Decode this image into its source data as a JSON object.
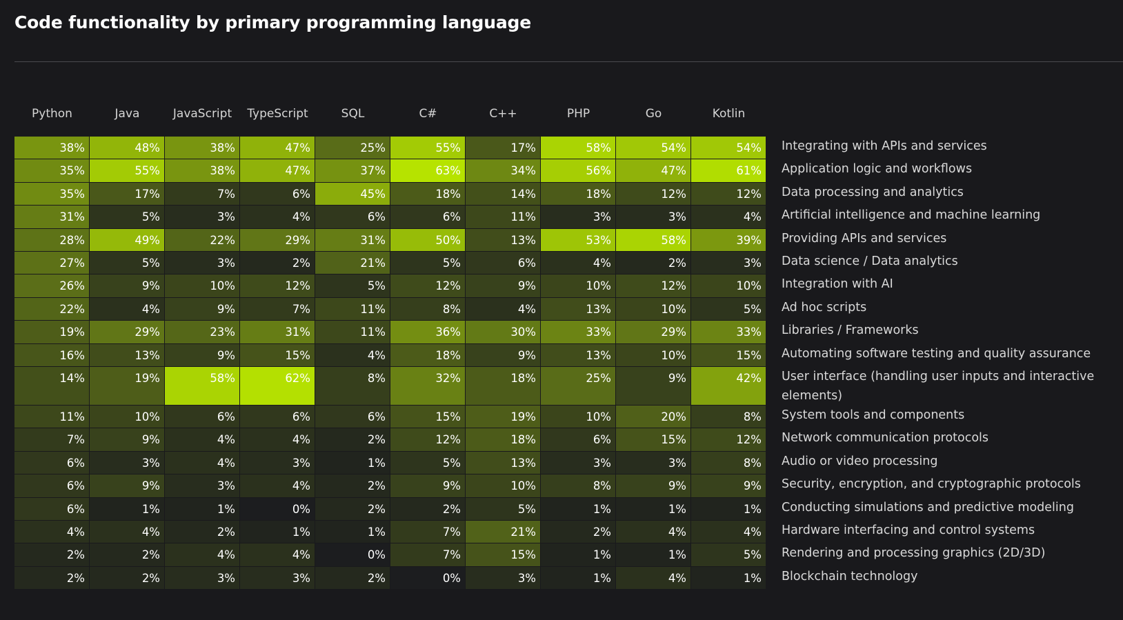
{
  "title": "Code functionality by primary programming language",
  "chart_data": {
    "type": "heatmap",
    "title": "Code functionality by primary programming language",
    "value_suffix": "%",
    "columns": [
      "Python",
      "Java",
      "JavaScript",
      "TypeScript",
      "SQL",
      "C#",
      "C++",
      "PHP",
      "Go",
      "Kotlin"
    ],
    "rows": [
      {
        "label": "Integrating with APIs and services",
        "values": [
          38,
          48,
          38,
          47,
          25,
          55,
          17,
          58,
          54,
          54
        ]
      },
      {
        "label": "Application logic and workflows",
        "values": [
          35,
          55,
          38,
          47,
          37,
          63,
          34,
          56,
          47,
          61
        ]
      },
      {
        "label": "Data processing and analytics",
        "values": [
          35,
          17,
          7,
          6,
          45,
          18,
          14,
          18,
          12,
          12
        ]
      },
      {
        "label": "Artificial intelligence and machine learning",
        "values": [
          31,
          5,
          3,
          4,
          6,
          6,
          11,
          3,
          3,
          4
        ]
      },
      {
        "label": "Providing APIs and services",
        "values": [
          28,
          49,
          22,
          29,
          31,
          50,
          13,
          53,
          58,
          39
        ]
      },
      {
        "label": "Data science / Data analytics",
        "values": [
          27,
          5,
          3,
          2,
          21,
          5,
          6,
          4,
          2,
          3
        ]
      },
      {
        "label": "Integration with AI",
        "values": [
          26,
          9,
          10,
          12,
          5,
          12,
          9,
          10,
          12,
          10
        ]
      },
      {
        "label": "Ad hoc scripts",
        "values": [
          22,
          4,
          9,
          7,
          11,
          8,
          4,
          13,
          10,
          5
        ]
      },
      {
        "label": "Libraries / Frameworks",
        "values": [
          19,
          29,
          23,
          31,
          11,
          36,
          30,
          33,
          29,
          33
        ]
      },
      {
        "label": "Automating software testing and quality assurance",
        "values": [
          16,
          13,
          9,
          15,
          4,
          18,
          9,
          13,
          10,
          15
        ]
      },
      {
        "label": "User interface (handling user inputs and interactive elements)",
        "values": [
          14,
          19,
          58,
          62,
          8,
          32,
          18,
          25,
          9,
          42
        ]
      },
      {
        "label": "System tools and components",
        "values": [
          11,
          10,
          6,
          6,
          6,
          15,
          19,
          10,
          20,
          8
        ]
      },
      {
        "label": "Network communication protocols",
        "values": [
          7,
          9,
          4,
          4,
          2,
          12,
          18,
          6,
          15,
          12
        ]
      },
      {
        "label": "Audio or video processing",
        "values": [
          6,
          3,
          4,
          3,
          1,
          5,
          13,
          3,
          3,
          8
        ]
      },
      {
        "label": "Security, encryption, and cryptographic protocols",
        "values": [
          6,
          9,
          3,
          4,
          2,
          9,
          10,
          8,
          9,
          9
        ]
      },
      {
        "label": "Conducting simulations and predictive modeling",
        "values": [
          6,
          1,
          1,
          0,
          2,
          2,
          5,
          1,
          1,
          1
        ]
      },
      {
        "label": "Hardware interfacing and control systems",
        "values": [
          4,
          4,
          2,
          1,
          1,
          7,
          21,
          2,
          4,
          4
        ]
      },
      {
        "label": "Rendering and processing graphics (2D/3D)",
        "values": [
          2,
          2,
          4,
          4,
          0,
          7,
          15,
          1,
          1,
          5
        ]
      },
      {
        "label": "Blockchain technology",
        "values": [
          2,
          2,
          3,
          3,
          2,
          0,
          3,
          1,
          4,
          1
        ]
      }
    ],
    "color_low": "#19191c",
    "color_high": "#b6e300",
    "value_range": [
      0,
      63
    ]
  }
}
